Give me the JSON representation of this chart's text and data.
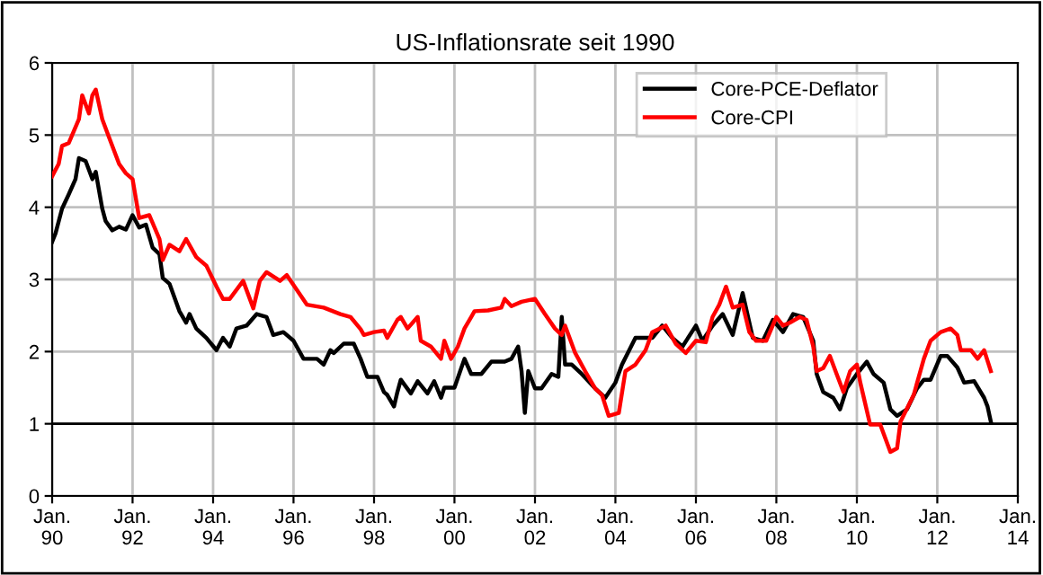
{
  "chart_data": {
    "type": "line",
    "title": "US-Inflationsrate seit 1990",
    "xlim": [
      "1990-01",
      "2014-01"
    ],
    "ylim": [
      0,
      6
    ],
    "yticks": [
      0,
      1,
      2,
      3,
      4,
      5,
      6
    ],
    "xticks": [
      {
        "value": "1990-01",
        "label": "Jan.\n90"
      },
      {
        "value": "1992-01",
        "label": "Jan.\n92"
      },
      {
        "value": "1994-01",
        "label": "Jan.\n94"
      },
      {
        "value": "1996-01",
        "label": "Jan.\n96"
      },
      {
        "value": "1998-01",
        "label": "Jan.\n98"
      },
      {
        "value": "2000-01",
        "label": "Jan.\n00"
      },
      {
        "value": "2002-01",
        "label": "Jan.\n02"
      },
      {
        "value": "2004-01",
        "label": "Jan.\n04"
      },
      {
        "value": "2006-01",
        "label": "Jan.\n06"
      },
      {
        "value": "2008-01",
        "label": "Jan.\n08"
      },
      {
        "value": "2010-01",
        "label": "Jan.\n10"
      },
      {
        "value": "2012-01",
        "label": "Jan.\n12"
      },
      {
        "value": "2014-01",
        "label": "Jan.\n14"
      }
    ],
    "grid": true,
    "legend": "top right",
    "line_style": "solid",
    "marker": "none",
    "ref_lines": [
      {
        "axis": "y",
        "value": 1,
        "color": "#000000"
      }
    ],
    "series": [
      {
        "name": "Core-PCE-Deflator",
        "color": "#000000",
        "x": [
          "1990-01",
          "1990-02",
          "1990-04",
          "1990-06",
          "1990-08",
          "1990-09",
          "1990-11",
          "1991-01",
          "1991-02",
          "1991-04",
          "1991-05",
          "1991-07",
          "1991-09",
          "1991-11",
          "1992-01",
          "1992-03",
          "1992-05",
          "1992-07",
          "1992-09",
          "1992-10",
          "1992-12",
          "1993-03",
          "1993-05",
          "1993-06",
          "1993-08",
          "1993-11",
          "1994-02",
          "1994-04",
          "1994-06",
          "1994-08",
          "1994-11",
          "1995-02",
          "1995-05",
          "1995-07",
          "1995-10",
          "1996-01",
          "1996-04",
          "1996-08",
          "1996-10",
          "1996-12",
          "1997-01",
          "1997-04",
          "1997-07",
          "1997-09",
          "1997-11",
          "1998-02",
          "1998-04",
          "1998-05",
          "1998-07",
          "1998-08",
          "1998-09",
          "1998-12",
          "1999-02",
          "1999-05",
          "1999-07",
          "1999-09",
          "1999-10",
          "2000-01",
          "2000-04",
          "2000-06",
          "2000-09",
          "2000-12",
          "2001-04",
          "2001-06",
          "2001-08",
          "2001-09",
          "2001-10",
          "2001-11",
          "2002-01",
          "2002-03",
          "2002-06",
          "2002-08",
          "2002-09",
          "2002-10",
          "2002-12",
          "2003-03",
          "2003-07",
          "2003-10",
          "2004-01",
          "2004-03",
          "2004-07",
          "2004-12",
          "2005-03",
          "2005-06",
          "2005-09",
          "2006-01",
          "2006-03",
          "2006-06",
          "2006-09",
          "2006-12",
          "2007-03",
          "2007-06",
          "2007-09",
          "2007-12",
          "2008-03",
          "2008-06",
          "2008-09",
          "2008-12",
          "2009-01",
          "2009-03",
          "2009-06",
          "2009-08",
          "2009-10",
          "2010-01",
          "2010-04",
          "2010-06",
          "2010-09",
          "2010-11",
          "2011-01",
          "2011-04",
          "2011-07",
          "2011-09",
          "2011-11",
          "2012-02",
          "2012-04",
          "2012-07",
          "2012-09",
          "2012-12",
          "2013-03",
          "2013-04",
          "2013-05"
        ],
        "values": [
          3.52,
          3.64,
          3.98,
          4.18,
          4.39,
          4.68,
          4.64,
          4.39,
          4.49,
          3.98,
          3.81,
          3.68,
          3.73,
          3.69,
          3.89,
          3.72,
          3.76,
          3.44,
          3.35,
          3.02,
          2.94,
          2.56,
          2.4,
          2.52,
          2.32,
          2.19,
          2.02,
          2.19,
          2.07,
          2.32,
          2.36,
          2.52,
          2.48,
          2.23,
          2.27,
          2.15,
          1.9,
          1.9,
          1.82,
          2.02,
          1.98,
          2.11,
          2.11,
          1.9,
          1.65,
          1.65,
          1.44,
          1.4,
          1.24,
          1.44,
          1.61,
          1.42,
          1.59,
          1.42,
          1.59,
          1.36,
          1.5,
          1.5,
          1.9,
          1.69,
          1.69,
          1.86,
          1.86,
          1.9,
          2.07,
          1.73,
          1.15,
          1.73,
          1.49,
          1.49,
          1.69,
          1.65,
          2.48,
          1.82,
          1.82,
          1.69,
          1.49,
          1.36,
          1.57,
          1.82,
          2.19,
          2.19,
          2.36,
          2.19,
          2.07,
          2.36,
          2.15,
          2.36,
          2.52,
          2.23,
          2.81,
          2.19,
          2.15,
          2.44,
          2.27,
          2.52,
          2.48,
          2.15,
          1.69,
          1.44,
          1.36,
          1.2,
          1.49,
          1.69,
          1.86,
          1.69,
          1.57,
          1.2,
          1.11,
          1.2,
          1.49,
          1.61,
          1.61,
          1.94,
          1.94,
          1.78,
          1.57,
          1.59,
          1.36,
          1.24,
          1.03
        ]
      },
      {
        "name": "Core-CPI",
        "color": "#ff0000",
        "x": [
          "1990-01",
          "1990-03",
          "1990-04",
          "1990-06",
          "1990-09",
          "1990-10",
          "1990-12",
          "1991-01",
          "1991-02",
          "1991-04",
          "1991-06",
          "1991-09",
          "1991-11",
          "1992-01",
          "1992-03",
          "1992-06",
          "1992-09",
          "1992-10",
          "1992-12",
          "1993-03",
          "1993-05",
          "1993-08",
          "1993-11",
          "1994-02",
          "1994-04",
          "1994-06",
          "1994-10",
          "1995-01",
          "1995-03",
          "1995-05",
          "1995-09",
          "1995-11",
          "1996-05",
          "1996-10",
          "1997-03",
          "1997-06",
          "1997-09",
          "1997-10",
          "1998-01",
          "1998-04",
          "1998-05",
          "1998-08",
          "1998-09",
          "1998-11",
          "1999-02",
          "1999-03",
          "1999-06",
          "1999-09",
          "1999-10",
          "1999-12",
          "2000-02",
          "2000-04",
          "2000-06",
          "2000-07",
          "2000-11",
          "2001-03",
          "2001-04",
          "2001-06",
          "2001-09",
          "2002-01",
          "2002-04",
          "2002-07",
          "2002-09",
          "2002-10",
          "2003-01",
          "2003-04",
          "2003-07",
          "2003-09",
          "2003-11",
          "2004-02",
          "2004-04",
          "2004-07",
          "2004-10",
          "2004-12",
          "2005-04",
          "2005-07",
          "2005-10",
          "2006-01",
          "2006-04",
          "2006-06",
          "2006-08",
          "2006-10",
          "2006-12",
          "2007-03",
          "2007-05",
          "2007-07",
          "2007-10",
          "2008-01",
          "2008-03",
          "2008-05",
          "2008-08",
          "2008-10",
          "2008-12",
          "2009-01",
          "2009-03",
          "2009-05",
          "2009-07",
          "2009-09",
          "2009-11",
          "2010-01",
          "2010-02",
          "2010-05",
          "2010-08",
          "2010-11",
          "2011-01",
          "2011-02",
          "2011-06",
          "2011-09",
          "2011-11",
          "2012-02",
          "2012-05",
          "2012-07",
          "2012-08",
          "2012-11",
          "2013-01",
          "2013-03",
          "2013-05"
        ],
        "values": [
          4.43,
          4.6,
          4.85,
          4.89,
          5.22,
          5.55,
          5.3,
          5.55,
          5.63,
          5.22,
          4.97,
          4.6,
          4.47,
          4.39,
          3.85,
          3.89,
          3.56,
          3.27,
          3.48,
          3.39,
          3.56,
          3.31,
          3.19,
          2.9,
          2.73,
          2.73,
          2.98,
          2.6,
          2.98,
          3.1,
          2.98,
          3.06,
          2.65,
          2.61,
          2.52,
          2.48,
          2.31,
          2.23,
          2.27,
          2.29,
          2.19,
          2.44,
          2.48,
          2.32,
          2.48,
          2.15,
          2.07,
          1.9,
          2.15,
          1.9,
          2.07,
          2.32,
          2.48,
          2.56,
          2.57,
          2.61,
          2.73,
          2.63,
          2.69,
          2.73,
          2.52,
          2.32,
          2.23,
          2.36,
          1.98,
          1.73,
          1.49,
          1.4,
          1.11,
          1.15,
          1.73,
          1.82,
          2.02,
          2.27,
          2.36,
          2.11,
          1.98,
          2.15,
          2.13,
          2.48,
          2.65,
          2.9,
          2.61,
          2.65,
          2.27,
          2.15,
          2.15,
          2.48,
          2.36,
          2.4,
          2.48,
          2.44,
          2.07,
          1.73,
          1.77,
          1.94,
          1.69,
          1.44,
          1.73,
          1.82,
          1.57,
          0.99,
          0.99,
          0.61,
          0.66,
          1.03,
          1.4,
          1.9,
          2.15,
          2.27,
          2.32,
          2.23,
          2.02,
          2.02,
          1.9,
          2.02,
          1.73
        ]
      }
    ]
  }
}
